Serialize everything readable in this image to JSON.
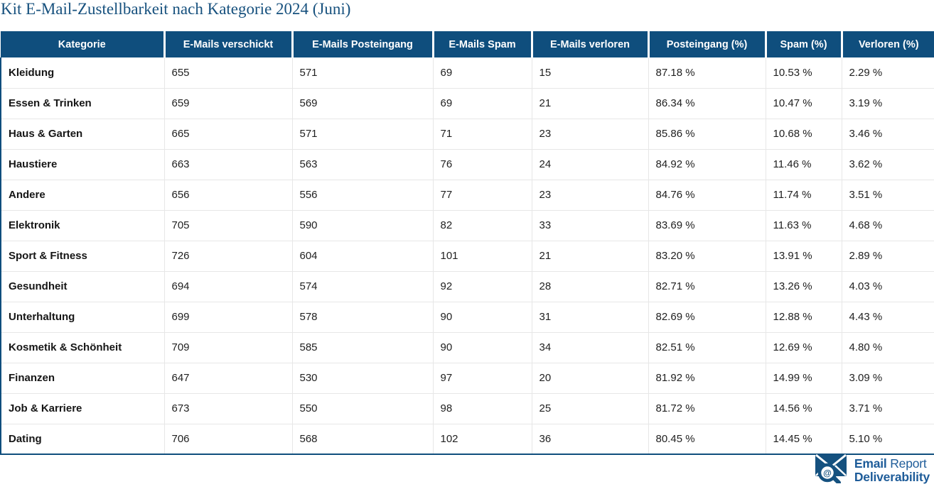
{
  "title": "Kit E-Mail-Zustellbarkeit nach Kategorie 2024 (Juni)",
  "colors": {
    "header_bg": "#0F4E7D",
    "title_text": "#17517E",
    "table_border": "#0F4E7D",
    "row_divider": "#E7E7E7",
    "logo_blue": "#1E5C99",
    "icon_blue": "#15517F"
  },
  "table": {
    "columns": [
      "Kategorie",
      "E-Mails verschickt",
      "E-Mails Posteingang",
      "E-Mails Spam",
      "E-Mails verloren",
      "Posteingang (%)",
      "Spam (%)",
      "Verloren (%)"
    ],
    "rows": [
      [
        "Kleidung",
        "655",
        "571",
        "69",
        "15",
        "87.18 %",
        "10.53 %",
        "2.29 %"
      ],
      [
        "Essen & Trinken",
        "659",
        "569",
        "69",
        "21",
        "86.34 %",
        "10.47 %",
        "3.19 %"
      ],
      [
        "Haus & Garten",
        "665",
        "571",
        "71",
        "23",
        "85.86 %",
        "10.68 %",
        "3.46 %"
      ],
      [
        "Haustiere",
        "663",
        "563",
        "76",
        "24",
        "84.92 %",
        "11.46 %",
        "3.62 %"
      ],
      [
        "Andere",
        "656",
        "556",
        "77",
        "23",
        "84.76 %",
        "11.74 %",
        "3.51 %"
      ],
      [
        "Elektronik",
        "705",
        "590",
        "82",
        "33",
        "83.69 %",
        "11.63 %",
        "4.68 %"
      ],
      [
        "Sport & Fitness",
        "726",
        "604",
        "101",
        "21",
        "83.20 %",
        "13.91 %",
        "2.89 %"
      ],
      [
        "Gesundheit",
        "694",
        "574",
        "92",
        "28",
        "82.71 %",
        "13.26 %",
        "4.03 %"
      ],
      [
        "Unterhaltung",
        "699",
        "578",
        "90",
        "31",
        "82.69 %",
        "12.88 %",
        "4.43 %"
      ],
      [
        "Kosmetik & Schönheit",
        "709",
        "585",
        "90",
        "34",
        "82.51 %",
        "12.69 %",
        "4.80 %"
      ],
      [
        "Finanzen",
        "647",
        "530",
        "97",
        "20",
        "81.92 %",
        "14.99 %",
        "3.09 %"
      ],
      [
        "Job & Karriere",
        "673",
        "550",
        "98",
        "25",
        "81.72 %",
        "14.56 %",
        "3.71 %"
      ],
      [
        "Dating",
        "706",
        "568",
        "102",
        "36",
        "80.45 %",
        "14.45 %",
        "5.10 %"
      ]
    ]
  },
  "chart_data": {
    "type": "table",
    "title": "Kit E-Mail-Zustellbarkeit nach Kategorie 2024 (Juni)",
    "columns": [
      "Kategorie",
      "E-Mails verschickt",
      "E-Mails Posteingang",
      "E-Mails Spam",
      "E-Mails verloren",
      "Posteingang (%)",
      "Spam (%)",
      "Verloren (%)"
    ],
    "categories": [
      "Kleidung",
      "Essen & Trinken",
      "Haus & Garten",
      "Haustiere",
      "Andere",
      "Elektronik",
      "Sport & Fitness",
      "Gesundheit",
      "Unterhaltung",
      "Kosmetik & Schönheit",
      "Finanzen",
      "Job & Karriere",
      "Dating"
    ],
    "series": [
      {
        "name": "E-Mails verschickt",
        "values": [
          655,
          659,
          665,
          663,
          656,
          705,
          726,
          694,
          699,
          709,
          647,
          673,
          706
        ]
      },
      {
        "name": "E-Mails Posteingang",
        "values": [
          571,
          569,
          571,
          563,
          556,
          590,
          604,
          574,
          578,
          585,
          530,
          550,
          568
        ]
      },
      {
        "name": "E-Mails Spam",
        "values": [
          69,
          69,
          71,
          76,
          77,
          82,
          101,
          92,
          90,
          90,
          97,
          98,
          102
        ]
      },
      {
        "name": "E-Mails verloren",
        "values": [
          15,
          21,
          23,
          24,
          23,
          33,
          21,
          28,
          31,
          34,
          20,
          25,
          36
        ]
      },
      {
        "name": "Posteingang (%)",
        "values": [
          87.18,
          86.34,
          85.86,
          84.92,
          84.76,
          83.69,
          83.2,
          82.71,
          82.69,
          82.51,
          81.92,
          81.72,
          80.45
        ]
      },
      {
        "name": "Spam (%)",
        "values": [
          10.53,
          10.47,
          10.68,
          11.46,
          11.74,
          11.63,
          13.91,
          13.26,
          12.88,
          12.69,
          14.99,
          14.56,
          14.45
        ]
      },
      {
        "name": "Verloren (%)",
        "values": [
          2.29,
          3.19,
          3.46,
          3.62,
          3.51,
          4.68,
          2.89,
          4.03,
          4.43,
          4.8,
          3.09,
          3.71,
          5.1
        ]
      }
    ]
  },
  "logo": {
    "line1_bold": "Email",
    "line1_light": " Report",
    "line2": "Deliverability",
    "at_symbol": "@"
  }
}
